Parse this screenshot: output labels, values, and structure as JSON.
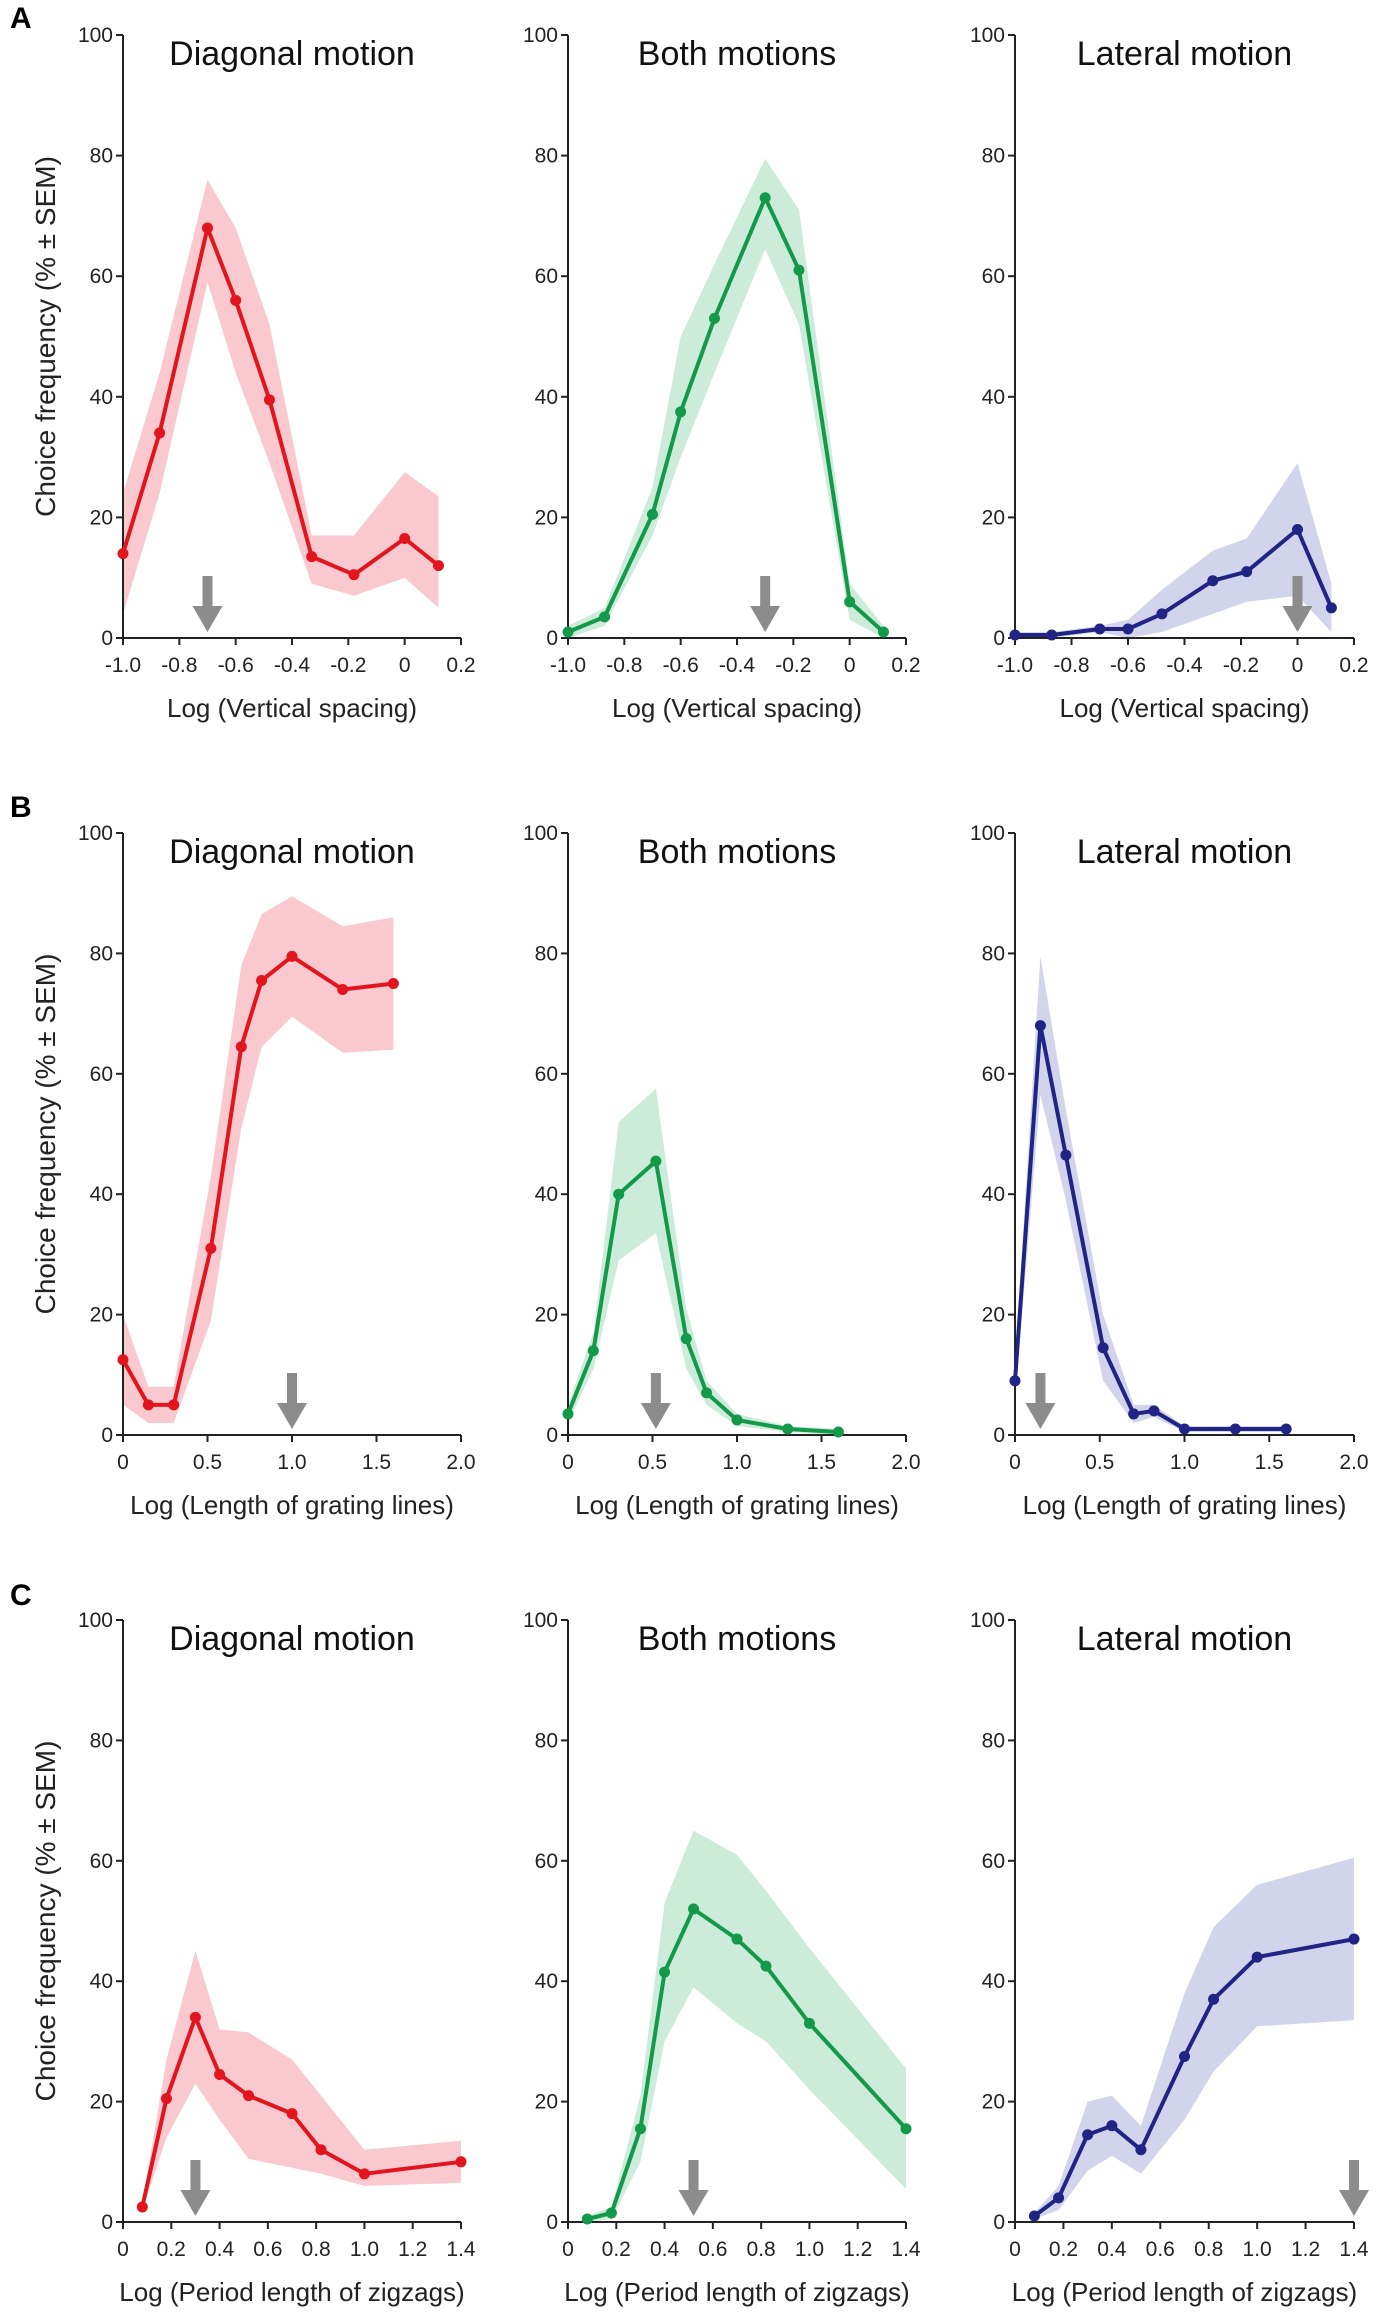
{
  "figure": {
    "ylabel": "Choice frequency (% ± SEM)",
    "colors": {
      "red": "#e2141e",
      "red_band": "#f9c9cf",
      "green": "#12994a",
      "green_band": "#cdebd9",
      "blue": "#202484",
      "blue_band": "#d2d4ec",
      "arrow": "#8c8c8c"
    }
  },
  "chart_data": [
    {
      "row": "A",
      "xlabel": "Log (Vertical spacing)",
      "xlim": [
        -1.0,
        0.2
      ],
      "xticks": [
        -1.0,
        -0.8,
        -0.6,
        -0.4,
        -0.2,
        0,
        0.2
      ],
      "xtick_labels": [
        "-1.0",
        "-0.8",
        "-0.6",
        "-0.4",
        "-0.2",
        "0",
        "0.2"
      ],
      "ylim": [
        0,
        100
      ],
      "yticks": [
        0,
        20,
        40,
        60,
        80,
        100
      ],
      "panels": [
        {
          "type": "line",
          "title": "Diagonal motion",
          "color": "red",
          "x": [
            -1.0,
            -0.87,
            -0.7,
            -0.6,
            -0.48,
            -0.33,
            -0.18,
            0,
            0.12
          ],
          "y": [
            14,
            34,
            68,
            56,
            39.5,
            13.5,
            10.5,
            16.5,
            12
          ],
          "upper": [
            24,
            44,
            76,
            68,
            52,
            17,
            17,
            27.5,
            23.5
          ],
          "lower": [
            4,
            24,
            59,
            44,
            29,
            9,
            7,
            10,
            5
          ],
          "arrow_x": -0.7
        },
        {
          "type": "line",
          "title": "Both motions",
          "color": "green",
          "x": [
            -1.0,
            -0.87,
            -0.7,
            -0.6,
            -0.48,
            -0.3,
            -0.18,
            0,
            0.12
          ],
          "y": [
            1,
            3.5,
            20.5,
            37.5,
            53,
            73,
            61,
            6,
            1
          ],
          "upper": [
            2,
            5,
            25,
            50,
            62,
            79.5,
            71,
            9,
            2
          ],
          "lower": [
            0,
            2,
            17,
            30,
            44,
            64.5,
            52,
            3,
            0
          ],
          "arrow_x": -0.3
        },
        {
          "type": "line",
          "title": "Lateral motion",
          "color": "blue",
          "x": [
            -1.0,
            -0.87,
            -0.7,
            -0.6,
            -0.48,
            -0.3,
            -0.18,
            0,
            0.12
          ],
          "y": [
            0.5,
            0.5,
            1.5,
            1.5,
            4,
            9.5,
            11,
            18,
            5
          ],
          "upper": [
            1,
            1,
            2,
            3,
            8,
            14.5,
            16.5,
            29,
            9
          ],
          "lower": [
            0,
            0,
            1,
            0,
            1,
            4,
            6,
            7,
            1
          ],
          "arrow_x": 0
        }
      ]
    },
    {
      "row": "B",
      "xlabel": "Log (Length of grating lines)",
      "xlim": [
        0,
        2.0
      ],
      "xticks": [
        0,
        0.5,
        1.0,
        1.5,
        2.0
      ],
      "xtick_labels": [
        "0",
        "0.5",
        "1.0",
        "1.5",
        "2.0"
      ],
      "ylim": [
        0,
        100
      ],
      "yticks": [
        0,
        20,
        40,
        60,
        80,
        100
      ],
      "panels": [
        {
          "type": "line",
          "title": "Diagonal motion",
          "color": "red",
          "x": [
            0,
            0.15,
            0.3,
            0.52,
            0.7,
            0.82,
            1.0,
            1.3,
            1.6
          ],
          "y": [
            12.5,
            5,
            5,
            31,
            64.5,
            75.5,
            79.5,
            74,
            75
          ],
          "upper": [
            20,
            8,
            8,
            43,
            78,
            86.5,
            89.5,
            84.5,
            86
          ],
          "lower": [
            5,
            2,
            2,
            19,
            51,
            64.5,
            69.5,
            63.5,
            64
          ],
          "arrow_x": 1.0
        },
        {
          "type": "line",
          "title": "Both motions",
          "color": "green",
          "x": [
            0,
            0.15,
            0.3,
            0.52,
            0.7,
            0.82,
            1.0,
            1.3,
            1.6
          ],
          "y": [
            3.5,
            14,
            40,
            45.5,
            16,
            7,
            2.5,
            1,
            0.5
          ],
          "upper": [
            5,
            17,
            52,
            57.5,
            21,
            9,
            3.5,
            1.5,
            1
          ],
          "lower": [
            2,
            11,
            29,
            33.5,
            11,
            5,
            1.5,
            0.5,
            0
          ],
          "arrow_x": 0.52
        },
        {
          "type": "line",
          "title": "Lateral motion",
          "color": "blue",
          "x": [
            0,
            0.15,
            0.3,
            0.52,
            0.7,
            0.82,
            1.0,
            1.3,
            1.6
          ],
          "y": [
            9,
            68,
            46.5,
            14.5,
            3.5,
            4,
            1,
            1,
            1
          ],
          "upper": [
            12,
            79.5,
            54,
            20,
            5,
            5,
            1.5,
            1.5,
            1.5
          ],
          "lower": [
            6,
            56.5,
            39,
            9,
            2,
            3,
            0.5,
            0.5,
            0.5
          ],
          "arrow_x": 0.15
        }
      ]
    },
    {
      "row": "C",
      "xlabel": "Log (Period length of zigzags)",
      "xlim": [
        0,
        1.4
      ],
      "xticks": [
        0,
        0.2,
        0.4,
        0.6,
        0.8,
        1.0,
        1.2,
        1.4
      ],
      "xtick_labels": [
        "0",
        "0.2",
        "0.4",
        "0.6",
        "0.8",
        "1.0",
        "1.2",
        "1.4"
      ],
      "ylim": [
        0,
        100
      ],
      "yticks": [
        0,
        20,
        40,
        60,
        80,
        100
      ],
      "panels": [
        {
          "type": "line",
          "title": "Diagonal motion",
          "color": "red",
          "x": [
            0.08,
            0.18,
            0.3,
            0.4,
            0.52,
            0.7,
            0.82,
            1.0,
            1.4
          ],
          "y": [
            2.5,
            20.5,
            34,
            24.5,
            21,
            18,
            12,
            8,
            10
          ],
          "upper": [
            3,
            27,
            45,
            32,
            31.5,
            27,
            21,
            12,
            13.5
          ],
          "lower": [
            2,
            14,
            23,
            17,
            10.5,
            9,
            8,
            6,
            6.5
          ],
          "arrow_x": 0.3
        },
        {
          "type": "line",
          "title": "Both motions",
          "color": "green",
          "x": [
            0.08,
            0.18,
            0.3,
            0.4,
            0.52,
            0.7,
            0.82,
            1.0,
            1.4
          ],
          "y": [
            0.5,
            1.5,
            15.5,
            41.5,
            52,
            47,
            42.5,
            33,
            15.5
          ],
          "upper": [
            1,
            2.5,
            21,
            53,
            65,
            61,
            55,
            45.5,
            25.5
          ],
          "lower": [
            0,
            0.5,
            10,
            30,
            39,
            33,
            30,
            22,
            5.5
          ],
          "arrow_x": 0.52
        },
        {
          "type": "line",
          "title": "Lateral motion",
          "color": "blue",
          "x": [
            0.08,
            0.18,
            0.3,
            0.4,
            0.52,
            0.7,
            0.82,
            1.0,
            1.4
          ],
          "y": [
            1,
            4,
            14.5,
            16,
            12,
            27.5,
            37,
            44,
            47
          ],
          "upper": [
            1.5,
            6,
            20,
            21,
            16,
            38,
            49,
            56,
            60.5
          ],
          "lower": [
            0.5,
            2,
            8.5,
            11,
            8,
            17,
            25,
            32.5,
            33.5
          ],
          "arrow_x": 1.4
        }
      ]
    }
  ]
}
